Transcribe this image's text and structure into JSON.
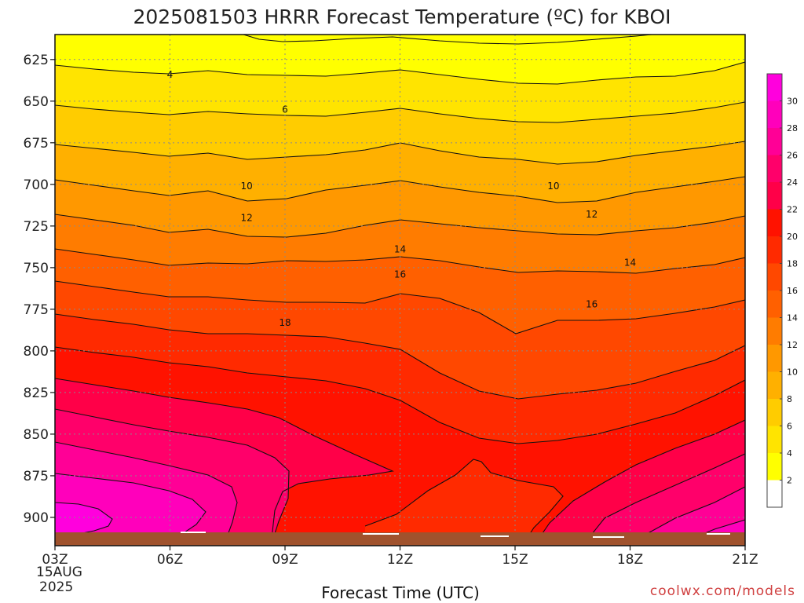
{
  "chart_data": {
    "type": "heatmap",
    "subtype": "filled-contour time-height cross section",
    "title": "2025081503 HRRR Forecast Temperature (ºC) for KBOI",
    "xlabel": "Forecast Time (UTC)",
    "ylabel": "",
    "x_ticks": [
      "03Z",
      "06Z",
      "09Z",
      "12Z",
      "15Z",
      "18Z",
      "21Z"
    ],
    "x_date_label": [
      "15AUG",
      "2025"
    ],
    "y_ticks": [
      625,
      650,
      675,
      700,
      725,
      750,
      775,
      800,
      825,
      850,
      875,
      900
    ],
    "y_axis": {
      "scale": "pressure (inverted)",
      "range": [
        610,
        917
      ]
    },
    "grid": true,
    "colorbar": {
      "placement": "right",
      "levels": [
        2,
        4,
        6,
        8,
        10,
        12,
        14,
        16,
        18,
        20,
        22,
        24,
        26,
        28,
        30
      ],
      "band_colors": [
        "#ffffff",
        "#ffff00",
        "#ffe400",
        "#ffcc00",
        "#ffb000",
        "#ff9800",
        "#ff7c00",
        "#ff6000",
        "#ff4800",
        "#ff2a00",
        "#ff1200",
        "#ff0048",
        "#ff006a",
        "#ff0096",
        "#ff00bb",
        "#ff00dd"
      ]
    },
    "contour_labels": [
      {
        "text": "4",
        "time": "06Z",
        "pressure": 634
      },
      {
        "text": "6",
        "time": "09Z",
        "pressure": 655
      },
      {
        "text": "10",
        "time": "08Z",
        "pressure": 701
      },
      {
        "text": "10",
        "time": "16Z",
        "pressure": 701
      },
      {
        "text": "12",
        "time": "08Z",
        "pressure": 720
      },
      {
        "text": "12",
        "time": "17Z",
        "pressure": 718
      },
      {
        "text": "14",
        "time": "12Z",
        "pressure": 739
      },
      {
        "text": "14",
        "time": "18Z",
        "pressure": 747
      },
      {
        "text": "16",
        "time": "12Z",
        "pressure": 754
      },
      {
        "text": "16",
        "time": "17Z",
        "pressure": 772
      },
      {
        "text": "18",
        "time": "09Z",
        "pressure": 783
      }
    ],
    "terrain_color": "#a0522d"
  },
  "credit": "coolwx.com/models"
}
